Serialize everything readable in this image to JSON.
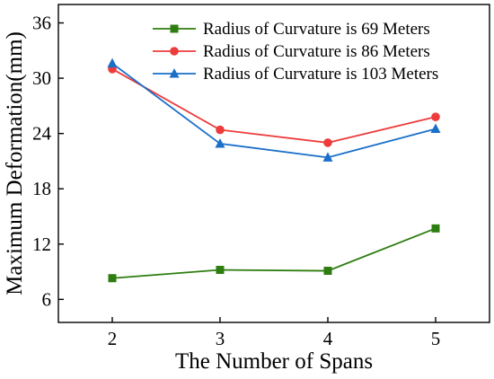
{
  "chart_data": {
    "type": "line",
    "xlabel": "The Number of Spans",
    "ylabel": "Maximum Deformation(mm)",
    "categories": [
      2,
      3,
      4,
      5
    ],
    "xlim": [
      1.5,
      5.5
    ],
    "ylim": [
      3.5,
      38
    ],
    "yticks": [
      6,
      12,
      18,
      24,
      30,
      36
    ],
    "grid": false,
    "legend_position": "top-right",
    "series": [
      {
        "name": "Radius of Curvature is 69 Meters",
        "values": [
          8.3,
          9.2,
          9.1,
          13.7
        ],
        "color": "#2e7d10",
        "marker": "square"
      },
      {
        "name": "Radius of Curvature is 86 Meters",
        "values": [
          31.0,
          24.4,
          23.0,
          25.8
        ],
        "color": "#ee3b3b",
        "marker": "circle"
      },
      {
        "name": "Radius of Curvature is 103 Meters",
        "values": [
          31.6,
          22.9,
          21.4,
          24.5
        ],
        "color": "#1a6fc9",
        "marker": "triangle"
      }
    ]
  }
}
